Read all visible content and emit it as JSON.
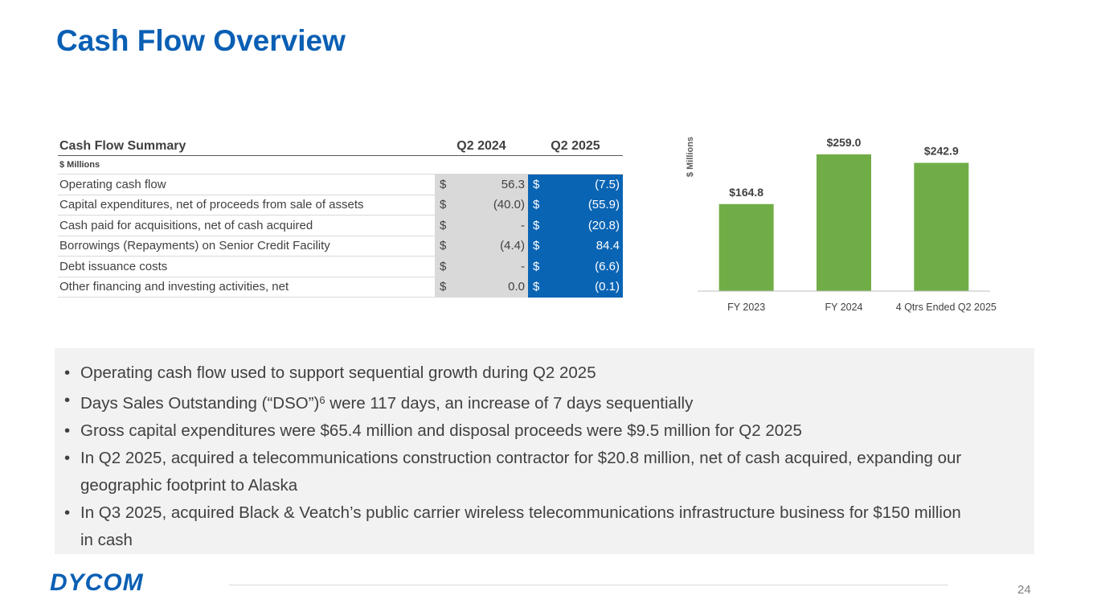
{
  "title": "Cash Flow Overview",
  "table": {
    "header": [
      "Cash Flow Summary",
      "Q2 2024",
      "Q2 2025"
    ],
    "units": "$ Millions",
    "currency": "$",
    "rows": [
      [
        "Operating cash flow",
        "56.3",
        "(7.5)"
      ],
      [
        "Capital expenditures, net of proceeds from sale of assets",
        "(40.0)",
        "(55.9)"
      ],
      [
        "Cash paid for acquisitions, net of cash acquired",
        "-",
        "(20.8)"
      ],
      [
        "Borrowings (Repayments) on Senior Credit Facility",
        "(4.4)",
        "84.4"
      ],
      [
        "Debt issuance costs",
        "-",
        "(6.6)"
      ],
      [
        "Other financing and investing activities, net",
        "0.0",
        "(0.1)"
      ]
    ]
  },
  "chart_data": {
    "type": "bar",
    "y_label": "$ Millions",
    "categories": [
      "FY 2023",
      "FY 2024",
      "4 Qtrs Ended Q2 2025"
    ],
    "values": [
      164.8,
      259.0,
      242.9
    ],
    "value_labels": [
      "$164.8",
      "$259.0",
      "$242.9"
    ],
    "color": "#70ad47",
    "ylim": [
      0,
      300
    ]
  },
  "bullets": [
    {
      "text": "Operating cash flow used to support sequential growth during Q2 2025"
    },
    {
      "text": "Days Sales Outstanding (“DSO”)",
      "footnote": "6",
      "text_after": " were 117 days, an increase of 7 days sequentially"
    },
    {
      "text": "Gross capital expenditures were $65.4 million and disposal proceeds were $9.5 million for Q2 2025"
    },
    {
      "text": "In Q2 2025, acquired a telecommunications construction contractor for $20.8 million, net of cash acquired, expanding our geographic footprint to Alaska"
    },
    {
      "text": "In Q3 2025, acquired Black & Veatch’s public carrier wireless telecommunications infrastructure business for $150 million in cash"
    }
  ],
  "logo": "DYCOM",
  "page_number": "24"
}
